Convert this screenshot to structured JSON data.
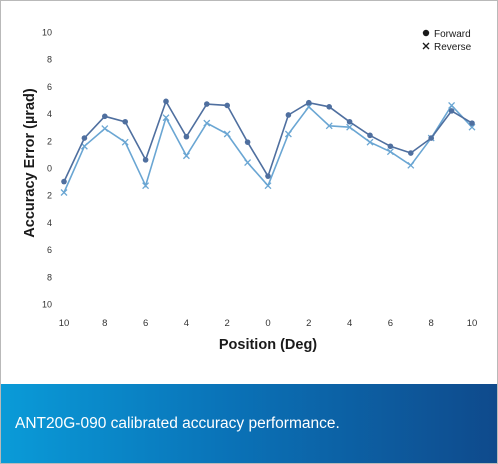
{
  "chart_data": {
    "type": "line",
    "xlabel": "Position (Deg)",
    "ylabel": "Accuracy Error (µrad)",
    "x_tick_labels": [
      "10",
      "8",
      "6",
      "4",
      "2",
      "0",
      "2",
      "4",
      "6",
      "8",
      "10"
    ],
    "y_tick_labels": [
      "10",
      "8",
      "6",
      "4",
      "2",
      "0",
      "2",
      "4",
      "6",
      "8",
      "10"
    ],
    "x": [
      -10,
      -9,
      -8,
      -7,
      -6,
      -5,
      -4,
      -3,
      -2,
      -1,
      0,
      1,
      2,
      3,
      4,
      5,
      6,
      7,
      8,
      9,
      10
    ],
    "xlim": [
      -10,
      10
    ],
    "ylim": [
      -10,
      10
    ],
    "legend_position": "top-right",
    "series": [
      {
        "name": "Forward",
        "marker": "circle",
        "color": "#4f6f9f",
        "values": [
          -1.0,
          2.2,
          3.8,
          3.4,
          0.6,
          4.9,
          2.3,
          4.7,
          4.6,
          1.9,
          -0.6,
          3.9,
          4.8,
          4.5,
          3.4,
          2.4,
          1.6,
          1.1,
          2.2,
          4.2,
          3.3
        ]
      },
      {
        "name": "Reverse",
        "marker": "x",
        "color": "#6aa6d3",
        "values": [
          -1.8,
          1.6,
          2.9,
          1.9,
          -1.3,
          3.7,
          0.9,
          3.3,
          2.5,
          0.4,
          -1.3,
          2.5,
          4.5,
          3.1,
          3.0,
          1.9,
          1.2,
          0.2,
          2.2,
          4.6,
          3.0
        ]
      }
    ]
  },
  "caption": {
    "text": "ANT20G-090 calibrated accuracy performance."
  }
}
